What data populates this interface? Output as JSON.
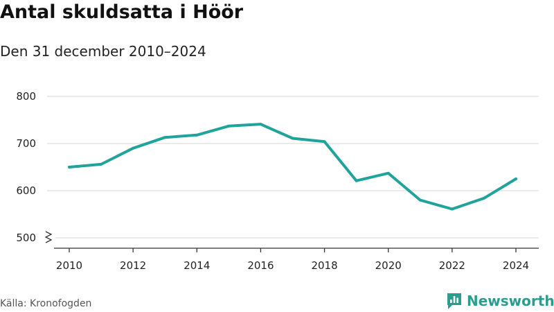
{
  "header": {
    "title": "Antal skuldsatta i Höör",
    "subtitle": "Den 31 december 2010–2024"
  },
  "footer": {
    "source": "Källa: Kronofogden",
    "brand": "Newsworthy"
  },
  "colors": {
    "line": "#1fa39a",
    "grid": "#dddddd",
    "axis": "#333333",
    "brand": "#2a9d8f"
  },
  "chart_data": {
    "type": "line",
    "title": "Antal skuldsatta i Höör",
    "subtitle": "Den 31 december 2010–2024",
    "xlabel": "",
    "ylabel": "",
    "x": [
      2010,
      2011,
      2012,
      2013,
      2014,
      2015,
      2016,
      2017,
      2018,
      2019,
      2020,
      2021,
      2022,
      2023,
      2024
    ],
    "series": [
      {
        "values": [
          650,
          656,
          690,
          713,
          718,
          737,
          741,
          711,
          704,
          621,
          637,
          580,
          561,
          584,
          625
        ]
      }
    ],
    "x_ticks": [
      "2010",
      "2012",
      "2014",
      "2016",
      "2018",
      "2020",
      "2022",
      "2024"
    ],
    "y_ticks": [
      "500",
      "600",
      "700",
      "800"
    ],
    "ylim": [
      500,
      800
    ],
    "y_axis_break": true,
    "grid": "horizontal",
    "legend": "none"
  }
}
